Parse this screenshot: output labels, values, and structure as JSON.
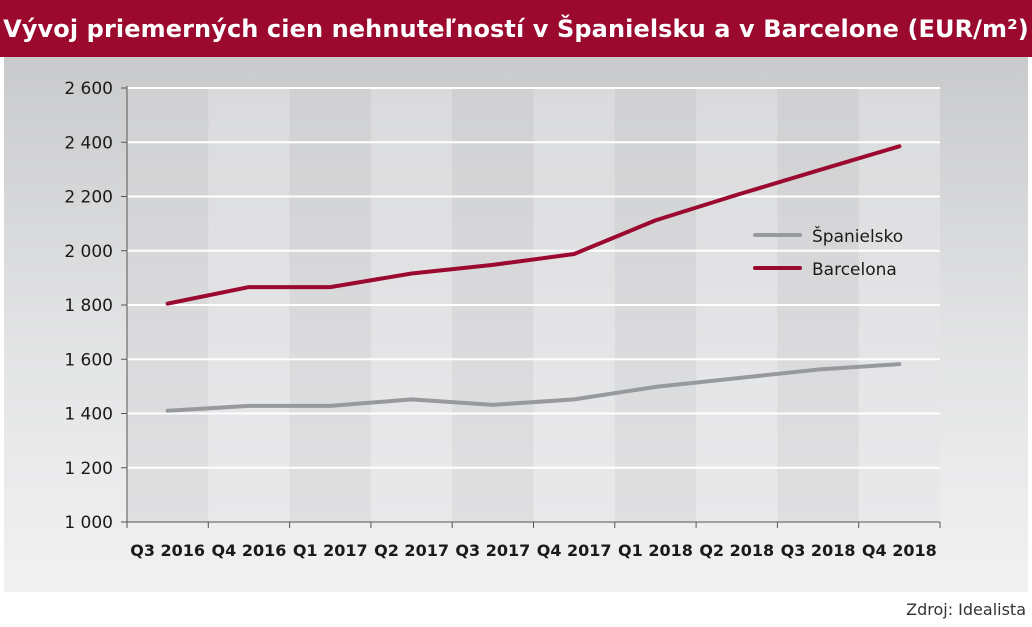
{
  "title": "Vývoj priemerných cien nehnuteľností v Španielsku a v Barcelone (EUR/m²)",
  "source": "Zdroj: Idealista",
  "colors": {
    "title_bg": "#9b0a2e",
    "spain": "#969a9d",
    "barcelona": "#9b0a2e"
  },
  "chart_data": {
    "type": "line",
    "title": "Vývoj priemerných cien nehnuteľností v Španielsku a v Barcelone (EUR/m²)",
    "categories": [
      "Q3 2016",
      "Q4 2016",
      "Q1 2017",
      "Q2 2017",
      "Q3 2017",
      "Q4 2017",
      "Q1 2018",
      "Q2 2018",
      "Q3 2018",
      "Q4 2018"
    ],
    "series": [
      {
        "name": "Španielsko",
        "color": "#969a9d",
        "values": [
          1410,
          1428,
          1428,
          1452,
          1432,
          1452,
          1498,
          1530,
          1562,
          1582
        ]
      },
      {
        "name": "Barcelona",
        "color": "#9b0a2e",
        "values": [
          1805,
          1866,
          1866,
          1916,
          1948,
          1988,
          2112,
          2206,
          2296,
          2385
        ]
      }
    ],
    "ylim": [
      1000,
      2600
    ],
    "yticks": [
      1000,
      1200,
      1400,
      1600,
      1800,
      2000,
      2200,
      2400,
      2600
    ],
    "ytick_labels": [
      "1 000",
      "1 200",
      "1 400",
      "1 600",
      "1 800",
      "2 000",
      "2 200",
      "2 400",
      "2 600"
    ],
    "xlabel": "",
    "ylabel": "",
    "grid": true,
    "legend_position": "right"
  }
}
